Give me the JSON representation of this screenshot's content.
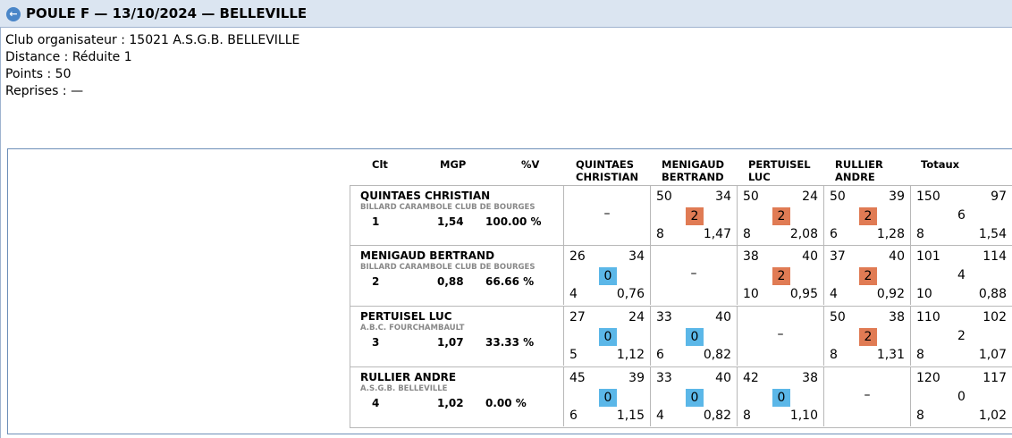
{
  "title": "POULE F — 13/10/2024 — BELLEVILLE",
  "info": [
    "Club organisateur : 15021 A.S.G.B. BELLEVILLE",
    "Distance : Réduite 1",
    "Points : 50",
    "Reprises : —"
  ],
  "headers": {
    "clt": "Clt",
    "mgp": "MGP",
    "pctv": "%V",
    "totaux": "Totaux",
    "opponents": [
      [
        "QUINTAES",
        "CHRISTIAN"
      ],
      [
        "MENIGAUD",
        "BERTRAND"
      ],
      [
        "PERTUISEL",
        "LUC"
      ],
      [
        "RULLIER",
        "ANDRE"
      ]
    ]
  },
  "players": [
    {
      "name": "QUINTAES CHRISTIAN",
      "club": "BILLARD CARAMBOLE CLUB DE BOURGES",
      "clt": "1",
      "mgp": "1,54",
      "pct": "100.00 %",
      "cells": [
        {
          "type": "self",
          "text": "–"
        },
        {
          "tl": "50",
          "tr": "34",
          "bl": "8",
          "br": "1,47",
          "badge": "2",
          "badge_kind": "win"
        },
        {
          "tl": "50",
          "tr": "24",
          "bl": "8",
          "br": "2,08",
          "badge": "2",
          "badge_kind": "win"
        },
        {
          "tl": "50",
          "tr": "39",
          "bl": "6",
          "br": "1,28",
          "badge": "2",
          "badge_kind": "win"
        },
        {
          "tl": "150",
          "tr": "97",
          "mid": "6",
          "bl": "8",
          "br": "1,54"
        }
      ]
    },
    {
      "name": "MENIGAUD BERTRAND",
      "club": "BILLARD CARAMBOLE CLUB DE BOURGES",
      "clt": "2",
      "mgp": "0,88",
      "pct": "66.66 %",
      "cells": [
        {
          "tl": "26",
          "tr": "34",
          "bl": "4",
          "br": "0,76",
          "badge": "0",
          "badge_kind": "loss"
        },
        {
          "type": "self",
          "text": "–"
        },
        {
          "tl": "38",
          "tr": "40",
          "bl": "10",
          "br": "0,95",
          "badge": "2",
          "badge_kind": "win"
        },
        {
          "tl": "37",
          "tr": "40",
          "bl": "4",
          "br": "0,92",
          "badge": "2",
          "badge_kind": "win"
        },
        {
          "tl": "101",
          "tr": "114",
          "mid": "4",
          "bl": "10",
          "br": "0,88"
        }
      ]
    },
    {
      "name": "PERTUISEL LUC",
      "club": "A.B.C. FOURCHAMBAULT",
      "clt": "3",
      "mgp": "1,07",
      "pct": "33.33 %",
      "cells": [
        {
          "tl": "27",
          "tr": "24",
          "bl": "5",
          "br": "1,12",
          "badge": "0",
          "badge_kind": "loss"
        },
        {
          "tl": "33",
          "tr": "40",
          "bl": "6",
          "br": "0,82",
          "badge": "0",
          "badge_kind": "loss"
        },
        {
          "type": "self",
          "text": "–"
        },
        {
          "tl": "50",
          "tr": "38",
          "bl": "8",
          "br": "1,31",
          "badge": "2",
          "badge_kind": "win"
        },
        {
          "tl": "110",
          "tr": "102",
          "mid": "2",
          "bl": "8",
          "br": "1,07"
        }
      ]
    },
    {
      "name": "RULLIER ANDRE",
      "club": "A.S.G.B. BELLEVILLE",
      "clt": "4",
      "mgp": "1,02",
      "pct": "0.00 %",
      "cells": [
        {
          "tl": "45",
          "tr": "39",
          "bl": "6",
          "br": "1,15",
          "badge": "0",
          "badge_kind": "loss"
        },
        {
          "tl": "33",
          "tr": "40",
          "bl": "4",
          "br": "0,82",
          "badge": "0",
          "badge_kind": "loss"
        },
        {
          "tl": "42",
          "tr": "38",
          "bl": "8",
          "br": "1,10",
          "badge": "0",
          "badge_kind": "loss"
        },
        {
          "type": "self",
          "text": "–"
        },
        {
          "tl": "120",
          "tr": "117",
          "mid": "0",
          "bl": "8",
          "br": "1,02"
        }
      ]
    }
  ],
  "colors": {
    "win_badge": "#e07b54",
    "loss_badge": "#5bb7e8",
    "titlebar": "#dbe5f1"
  },
  "icons": {
    "back": "back-arrow-icon"
  }
}
